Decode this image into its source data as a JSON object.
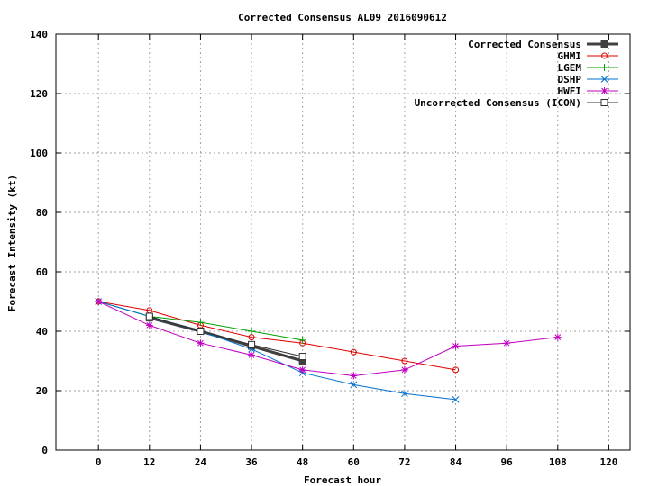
{
  "chart_data": {
    "type": "line",
    "title": "Corrected Consensus  AL09 2016090612",
    "xlabel": "Forecast hour",
    "ylabel": "Forecast Intensity (kt)",
    "xlim": [
      -10,
      125
    ],
    "ylim": [
      0,
      140
    ],
    "xticks": [
      0,
      12,
      24,
      36,
      48,
      60,
      72,
      84,
      96,
      108,
      120
    ],
    "yticks": [
      0,
      20,
      40,
      60,
      80,
      100,
      120,
      140
    ],
    "grid": true,
    "legend_position": "top-right",
    "series": [
      {
        "name": "Corrected Consensus",
        "color": "#404040",
        "marker": "filled-square",
        "width": 3,
        "x": [
          12,
          24,
          36,
          48
        ],
        "y": [
          44.5,
          40,
          35,
          30
        ]
      },
      {
        "name": "GHMI",
        "color": "#e00000",
        "marker": "circle",
        "width": 1,
        "x": [
          0,
          12,
          24,
          36,
          48,
          60,
          72,
          84
        ],
        "y": [
          50,
          47,
          42,
          38,
          36,
          33,
          30,
          27
        ]
      },
      {
        "name": "LGEM",
        "color": "#00a000",
        "marker": "plus",
        "width": 1,
        "x": [
          0,
          12,
          24,
          36,
          48
        ],
        "y": [
          50,
          45,
          43,
          40,
          37
        ]
      },
      {
        "name": "DSHP",
        "color": "#0070d0",
        "marker": "x",
        "width": 1,
        "x": [
          0,
          12,
          24,
          36,
          48,
          60,
          72,
          84
        ],
        "y": [
          50,
          45,
          40,
          34,
          26,
          22,
          19,
          17
        ]
      },
      {
        "name": "HWFI",
        "color": "#c000c0",
        "marker": "star",
        "width": 1,
        "x": [
          0,
          12,
          24,
          36,
          48,
          60,
          72,
          84,
          96,
          108
        ],
        "y": [
          50,
          42,
          36,
          32,
          27,
          25,
          27,
          35,
          36,
          38
        ]
      },
      {
        "name": "Uncorrected Consensus (ICON)",
        "color": "#303030",
        "marker": "open-square",
        "width": 1,
        "x": [
          12,
          24,
          36,
          48
        ],
        "y": [
          45,
          40,
          35.5,
          31.5
        ]
      }
    ]
  }
}
